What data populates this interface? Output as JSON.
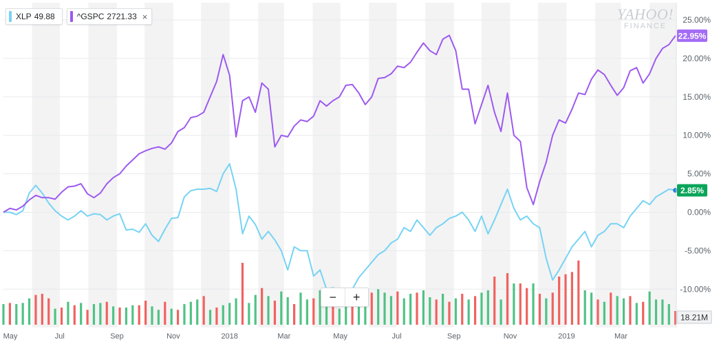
{
  "legend": [
    {
      "symbol": "XLP",
      "value": "49.88",
      "color": "#76d3f4",
      "closable": false
    },
    {
      "symbol": "^GSPC",
      "value": "2721.33",
      "color": "#9d59f0",
      "closable": true,
      "close_glyph": "×"
    }
  ],
  "watermark": {
    "line1": "YAHOO!",
    "line2": "FINANCE"
  },
  "zoom": {
    "minus": "−",
    "plus": "+"
  },
  "colors": {
    "xlp": "#76d3f4",
    "gspc": "#9d59f0",
    "vol_up": "#4fc285",
    "vol_down": "#f0625f",
    "xlp_badge": "#0aa55a",
    "gspc_badge": "#a46bf5",
    "band": "#f3f3f3"
  },
  "chart_data": {
    "type": "line",
    "ylabel": "",
    "ylim": [
      -12.5,
      26.5
    ],
    "yticks": [
      "25.00%",
      "20.00%",
      "15.00%",
      "10.00%",
      "5.00%",
      "0.00%",
      "-5.00%",
      "-10.00%"
    ],
    "ytick_values": [
      25,
      20,
      15,
      10,
      5,
      0,
      -5,
      -10
    ],
    "xlim": [
      "2017-05-01",
      "2019-04-30"
    ],
    "xticks": [
      {
        "label": "May",
        "date": "2017-05-01"
      },
      {
        "label": "Jul",
        "date": "2017-07-01"
      },
      {
        "label": "Sep",
        "date": "2017-09-01"
      },
      {
        "label": "Nov",
        "date": "2017-11-01"
      },
      {
        "label": "2018",
        "date": "2018-01-01"
      },
      {
        "label": "Mar",
        "date": "2018-03-01"
      },
      {
        "label": "May",
        "date": "2018-05-01"
      },
      {
        "label": "Jul",
        "date": "2018-07-01"
      },
      {
        "label": "Sep",
        "date": "2018-09-01"
      },
      {
        "label": "Nov",
        "date": "2018-11-01"
      },
      {
        "label": "2019",
        "date": "2019-01-01"
      },
      {
        "label": "Mar",
        "date": "2019-03-01"
      }
    ],
    "series": [
      {
        "name": "XLP",
        "current_label": "2.85%",
        "x": [
          "2017-05-01",
          "2017-05-08",
          "2017-05-15",
          "2017-05-22",
          "2017-05-29",
          "2017-06-05",
          "2017-06-12",
          "2017-06-19",
          "2017-06-26",
          "2017-07-03",
          "2017-07-10",
          "2017-07-17",
          "2017-07-24",
          "2017-07-31",
          "2017-08-07",
          "2017-08-14",
          "2017-08-21",
          "2017-08-28",
          "2017-09-04",
          "2017-09-11",
          "2017-09-18",
          "2017-09-25",
          "2017-10-02",
          "2017-10-09",
          "2017-10-16",
          "2017-10-23",
          "2017-10-30",
          "2017-11-06",
          "2017-11-13",
          "2017-11-20",
          "2017-11-27",
          "2017-12-04",
          "2017-12-11",
          "2017-12-18",
          "2017-12-25",
          "2018-01-01",
          "2018-01-08",
          "2018-01-15",
          "2018-01-22",
          "2018-01-29",
          "2018-02-05",
          "2018-02-12",
          "2018-02-19",
          "2018-02-26",
          "2018-03-05",
          "2018-03-12",
          "2018-03-19",
          "2018-03-26",
          "2018-04-02",
          "2018-04-09",
          "2018-04-16",
          "2018-04-23",
          "2018-04-30",
          "2018-05-07",
          "2018-05-14",
          "2018-05-21",
          "2018-05-28",
          "2018-06-04",
          "2018-06-11",
          "2018-06-18",
          "2018-06-25",
          "2018-07-02",
          "2018-07-09",
          "2018-07-16",
          "2018-07-23",
          "2018-07-30",
          "2018-08-06",
          "2018-08-13",
          "2018-08-20",
          "2018-08-27",
          "2018-09-03",
          "2018-09-10",
          "2018-09-17",
          "2018-09-24",
          "2018-10-01",
          "2018-10-08",
          "2018-10-15",
          "2018-10-22",
          "2018-10-29",
          "2018-11-05",
          "2018-11-12",
          "2018-11-19",
          "2018-11-26",
          "2018-12-03",
          "2018-12-10",
          "2018-12-17",
          "2018-12-24",
          "2018-12-31",
          "2019-01-07",
          "2019-01-14",
          "2019-01-21",
          "2019-01-28",
          "2019-02-04",
          "2019-02-11",
          "2019-02-18",
          "2019-02-25",
          "2019-03-04",
          "2019-03-11",
          "2019-03-18",
          "2019-03-25",
          "2019-04-01",
          "2019-04-08",
          "2019-04-15",
          "2019-04-22",
          "2019-04-29"
        ],
        "values": [
          0.0,
          0.0,
          -0.3,
          0.2,
          2.5,
          3.5,
          2.5,
          1.2,
          0.2,
          -0.5,
          -1.0,
          -0.5,
          0.2,
          -0.5,
          -0.2,
          -0.3,
          -1.0,
          -0.5,
          -0.2,
          -2.3,
          -2.2,
          -2.6,
          -1.5,
          -3.0,
          -3.8,
          -2.2,
          -0.8,
          -0.7,
          2.0,
          2.8,
          3.0,
          3.0,
          3.1,
          2.7,
          5.0,
          6.3,
          3.0,
          -2.8,
          -0.5,
          -1.6,
          -3.5,
          -2.5,
          -3.6,
          -5.0,
          -7.5,
          -4.5,
          -5.0,
          -5.0,
          -8.3,
          -7.5,
          -10.0,
          -9.8,
          -10.2,
          -11.0,
          -10.0,
          -8.5,
          -7.5,
          -6.5,
          -5.5,
          -5.0,
          -4.0,
          -3.5,
          -2.0,
          -2.5,
          -1.0,
          -2.0,
          -3.0,
          -2.0,
          -1.5,
          -0.8,
          -0.5,
          0.0,
          -1.0,
          -2.5,
          -0.5,
          -2.8,
          -1.0,
          1.0,
          3.0,
          0.5,
          -1.0,
          -0.5,
          -1.5,
          -2.0,
          -6.0,
          -8.8,
          -7.5,
          -6.0,
          -4.5,
          -3.5,
          -2.5,
          -4.5,
          -3.0,
          -2.5,
          -1.5,
          -1.5,
          -2.0,
          -0.5,
          0.5,
          1.5,
          1.0,
          2.0,
          2.5,
          3.0,
          2.85
        ]
      },
      {
        "name": "^GSPC",
        "current_label": "22.95%",
        "x": [
          "2017-05-01",
          "2017-05-08",
          "2017-05-15",
          "2017-05-22",
          "2017-05-29",
          "2017-06-05",
          "2017-06-12",
          "2017-06-19",
          "2017-06-26",
          "2017-07-03",
          "2017-07-10",
          "2017-07-17",
          "2017-07-24",
          "2017-07-31",
          "2017-08-07",
          "2017-08-14",
          "2017-08-21",
          "2017-08-28",
          "2017-09-04",
          "2017-09-11",
          "2017-09-18",
          "2017-09-25",
          "2017-10-02",
          "2017-10-09",
          "2017-10-16",
          "2017-10-23",
          "2017-10-30",
          "2017-11-06",
          "2017-11-13",
          "2017-11-20",
          "2017-11-27",
          "2017-12-04",
          "2017-12-11",
          "2017-12-18",
          "2017-12-25",
          "2018-01-01",
          "2018-01-08",
          "2018-01-15",
          "2018-01-22",
          "2018-01-29",
          "2018-02-05",
          "2018-02-12",
          "2018-02-19",
          "2018-02-26",
          "2018-03-05",
          "2018-03-12",
          "2018-03-19",
          "2018-03-26",
          "2018-04-02",
          "2018-04-09",
          "2018-04-16",
          "2018-04-23",
          "2018-04-30",
          "2018-05-07",
          "2018-05-14",
          "2018-05-21",
          "2018-05-28",
          "2018-06-04",
          "2018-06-11",
          "2018-06-18",
          "2018-06-25",
          "2018-07-02",
          "2018-07-09",
          "2018-07-16",
          "2018-07-23",
          "2018-07-30",
          "2018-08-06",
          "2018-08-13",
          "2018-08-20",
          "2018-08-27",
          "2018-09-03",
          "2018-09-10",
          "2018-09-17",
          "2018-09-24",
          "2018-10-01",
          "2018-10-08",
          "2018-10-15",
          "2018-10-22",
          "2018-10-29",
          "2018-11-05",
          "2018-11-12",
          "2018-11-19",
          "2018-11-26",
          "2018-12-03",
          "2018-12-10",
          "2018-12-17",
          "2018-12-24",
          "2018-12-31",
          "2019-01-07",
          "2019-01-14",
          "2019-01-21",
          "2019-01-28",
          "2019-02-04",
          "2019-02-11",
          "2019-02-18",
          "2019-02-25",
          "2019-03-04",
          "2019-03-11",
          "2019-03-18",
          "2019-03-25",
          "2019-04-01",
          "2019-04-08",
          "2019-04-15",
          "2019-04-22",
          "2019-04-29"
        ],
        "values": [
          0.0,
          0.5,
          0.3,
          0.8,
          1.6,
          2.2,
          1.9,
          1.9,
          1.7,
          2.6,
          3.3,
          3.4,
          3.7,
          2.4,
          1.9,
          2.5,
          3.7,
          4.5,
          5.0,
          6.0,
          6.8,
          7.6,
          8.0,
          8.3,
          8.5,
          8.2,
          9.0,
          10.5,
          11.0,
          12.3,
          12.5,
          13.0,
          15.0,
          17.0,
          20.5,
          17.8,
          9.8,
          14.5,
          15.0,
          13.0,
          16.8,
          16.0,
          8.5,
          10.0,
          9.8,
          11.2,
          12.0,
          11.8,
          12.5,
          14.5,
          13.8,
          14.5,
          15.0,
          16.5,
          16.6,
          15.5,
          14.0,
          15.0,
          17.4,
          17.5,
          18.0,
          19.0,
          18.8,
          19.5,
          20.8,
          22.0,
          21.0,
          20.5,
          22.5,
          23.0,
          21.0,
          16.0,
          16.0,
          11.5,
          14.0,
          16.5,
          13.0,
          10.5,
          15.5,
          10.0,
          9.2,
          3.2,
          1.0,
          4.0,
          6.5,
          10.0,
          12.0,
          11.6,
          13.4,
          15.5,
          15.3,
          17.3,
          18.5,
          17.9,
          16.5,
          15.2,
          16.2,
          18.4,
          18.8,
          16.8,
          18.0,
          20.0,
          21.3,
          21.8,
          22.95
        ]
      }
    ],
    "volume": {
      "unit_label": "18.21M",
      "ylim": [
        0,
        60
      ],
      "values": [
        18,
        19,
        18,
        19,
        23,
        26,
        27,
        23,
        14,
        15,
        20,
        17,
        19,
        13,
        18,
        19,
        20,
        16,
        15,
        15,
        17,
        17,
        21,
        16,
        13,
        20,
        14,
        13,
        18,
        20,
        22,
        25,
        13,
        15,
        17,
        19,
        23,
        54,
        19,
        26,
        32,
        25,
        21,
        29,
        24,
        18,
        28,
        22,
        23,
        30,
        26,
        20,
        14,
        18,
        22,
        25,
        28,
        28,
        31,
        28,
        25,
        29,
        23,
        27,
        28,
        30,
        24,
        22,
        27,
        20,
        23,
        27,
        22,
        25,
        28,
        30,
        42,
        22,
        45,
        36,
        36,
        32,
        36,
        27,
        23,
        28,
        42,
        44,
        46,
        56,
        30,
        28,
        22,
        20,
        28,
        25,
        23,
        25,
        19,
        20,
        29,
        22,
        22,
        18,
        12
      ],
      "colors": [
        "up",
        "down",
        "up",
        "up",
        "up",
        "down",
        "down",
        "down",
        "up",
        "down",
        "up",
        "down",
        "up",
        "down",
        "up",
        "up",
        "down",
        "up",
        "down",
        "up",
        "up",
        "down",
        "down",
        "up",
        "up",
        "down",
        "up",
        "down",
        "up",
        "up",
        "up",
        "down",
        "up",
        "down",
        "up",
        "up",
        "up",
        "down",
        "up",
        "up",
        "down",
        "up",
        "down",
        "up",
        "up",
        "down",
        "up",
        "up",
        "down",
        "up",
        "up",
        "down",
        "up",
        "up",
        "down",
        "up",
        "up",
        "down",
        "up",
        "up",
        "up",
        "down",
        "up",
        "up",
        "down",
        "up",
        "up",
        "down",
        "up",
        "down",
        "up",
        "down",
        "up",
        "down",
        "up",
        "up",
        "down",
        "up",
        "down",
        "up",
        "down",
        "down",
        "up",
        "down",
        "up",
        "down",
        "down",
        "down",
        "down",
        "down",
        "up",
        "up",
        "down",
        "up",
        "down",
        "up",
        "up",
        "down",
        "up",
        "down",
        "up",
        "up",
        "up",
        "up",
        "down"
      ]
    }
  }
}
